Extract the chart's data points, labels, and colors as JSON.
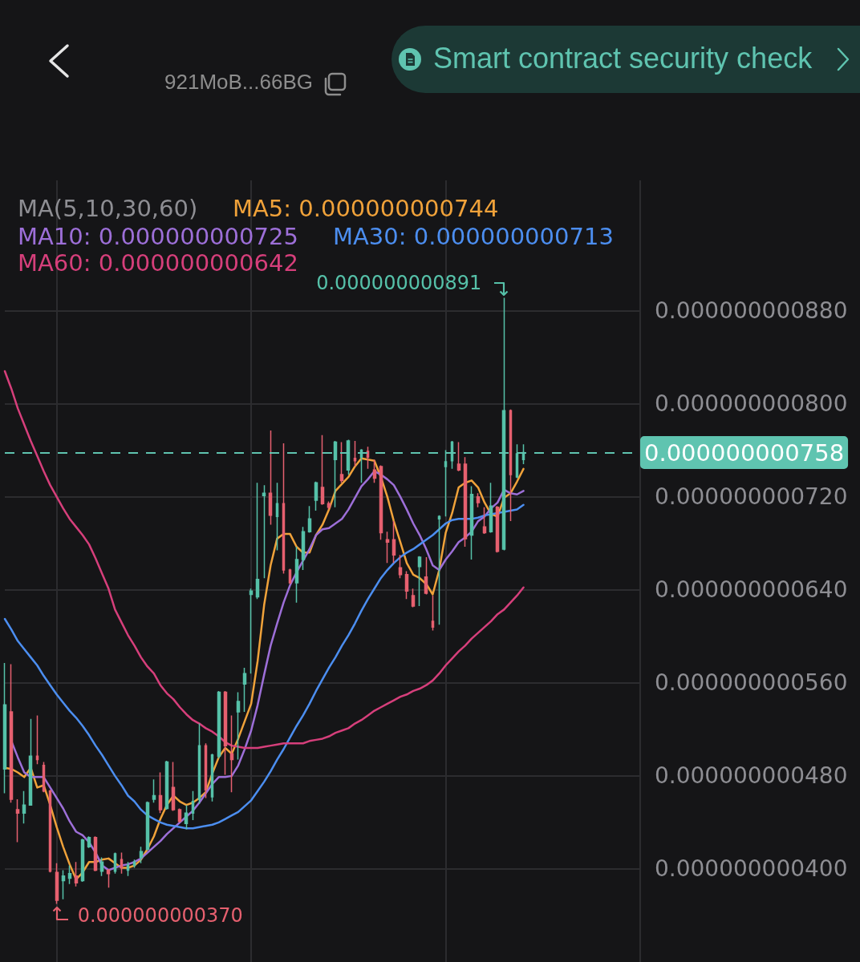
{
  "chart_data": {
    "type": "candlestick",
    "subtitle": "921MoB...66BG",
    "legend_title": "MA(5,10,30,60)",
    "annotations": [
      "Smart contract security check",
      "0.000000000891",
      "0.000000000370"
    ],
    "categories": [
      null,
      null,
      null,
      null,
      null,
      null,
      null,
      null,
      null,
      null,
      null,
      null,
      null,
      null,
      null,
      null,
      null,
      null,
      null,
      null,
      null,
      null,
      null,
      null,
      null,
      null,
      null,
      null,
      null,
      null,
      null,
      null,
      null,
      null,
      null,
      null,
      null,
      null,
      null,
      null,
      null,
      null,
      null,
      null,
      null,
      null,
      null,
      null,
      null,
      null,
      null,
      null,
      null,
      null,
      null,
      null,
      null,
      null,
      null,
      null,
      null,
      null,
      null,
      null,
      null,
      null,
      null,
      null,
      null,
      null,
      null,
      null,
      null,
      null,
      null,
      null,
      null,
      null,
      null,
      null,
      null
    ],
    "ohlc": [
      [
        4.86e-10,
        5.77e-10,
        4.65e-10,
        5.41e-10
      ],
      [
        5.35e-10,
        5.76e-10,
        4.57e-10,
        4.6e-10
      ],
      [
        4.51e-10,
        4.6e-10,
        4.23e-10,
        4.48e-10
      ],
      [
        4.48e-10,
        4.67e-10,
        4.39e-10,
        4.55e-10
      ],
      [
        4.55e-10,
        5.29e-10,
        4.55e-10,
        4.97e-10
      ],
      [
        4.97e-10,
        5.32e-10,
        4.9e-10,
        4.94e-10
      ],
      [
        4.89e-10,
        4.92e-10,
        4.66e-10,
        4.67e-10
      ],
      [
        4.67e-10,
        4.68e-10,
        3.97e-10,
        3.98e-10
      ],
      [
        3.97e-10,
        4.05e-10,
        3.7e-10,
        3.73e-10
      ],
      [
        3.9e-10,
        3.99e-10,
        3.74e-10,
        3.94e-10
      ],
      [
        3.92e-10,
        4.03e-10,
        3.87e-10,
        3.96e-10
      ],
      [
        3.94e-10,
        4.06e-10,
        3.85e-10,
        3.88e-10
      ],
      [
        3.9e-10,
        4.26e-10,
        3.89e-10,
        4.25e-10
      ],
      [
        4.19e-10,
        4.28e-10,
        4.18e-10,
        4.27e-10
      ],
      [
        4.27e-10,
        4.28e-10,
        3.98e-10,
        3.99e-10
      ],
      [
        3.98e-10,
        4.1e-10,
        3.94e-10,
        4.06e-10
      ],
      [
        3.99e-10,
        4e-10,
        3.84e-10,
        3.96e-10
      ],
      [
        3.98e-10,
        4.14e-10,
        3.96e-10,
        4.13e-10
      ],
      [
        4.08e-10,
        4.14e-10,
        3.96e-10,
        4.01e-10
      ],
      [
        3.99e-10,
        4.06e-10,
        3.94e-10,
        4.03e-10
      ],
      [
        4.03e-10,
        4.08e-10,
        4.01e-10,
        4.06e-10
      ],
      [
        4.1e-10,
        4.19e-10,
        4.05e-10,
        4.15e-10
      ],
      [
        4.17e-10,
        4.58e-10,
        4.16e-10,
        4.57e-10
      ],
      [
        4.6e-10,
        4.77e-10,
        4.57e-10,
        4.63e-10
      ],
      [
        4.63e-10,
        4.83e-10,
        4.48e-10,
        4.51e-10
      ],
      [
        4.52e-10,
        4.93e-10,
        4.51e-10,
        4.92e-10
      ],
      [
        4.7e-10,
        4.92e-10,
        4.5e-10,
        4.51e-10
      ],
      [
        4.51e-10,
        4.52e-10,
        4.4e-10,
        4.41e-10
      ],
      [
        4.39e-10,
        4.55e-10,
        4.34e-10,
        4.48e-10
      ],
      [
        4.48e-10,
        4.67e-10,
        4.42e-10,
        4.58e-10
      ],
      [
        4.6e-10,
        5.25e-10,
        4.56e-10,
        5.06e-10
      ],
      [
        5.06e-10,
        5.08e-10,
        4.61e-10,
        4.68e-10
      ],
      [
        4.62e-10,
        4.99e-10,
        4.58e-10,
        4.98e-10
      ],
      [
        4.97e-10,
        5.53e-10,
        4.95e-10,
        5.52e-10
      ],
      [
        5.52e-10,
        5.53e-10,
        4.81e-10,
        5.06e-10
      ],
      [
        4.99e-10,
        5.32e-10,
        4.66e-10,
        4.94e-10
      ],
      [
        5.35e-10,
        5.52e-10,
        4.94e-10,
        5.44e-10
      ],
      [
        5.59e-10,
        5.73e-10,
        5.35e-10,
        5.68e-10
      ],
      [
        6.36e-10,
        6.41e-10,
        5.68e-10,
        6.39e-10
      ],
      [
        6.34e-10,
        7.32e-10,
        6.32e-10,
        6.49e-10
      ],
      [
        7.21e-10,
        7.3e-10,
        6.5e-10,
        7.23e-10
      ],
      [
        7.23e-10,
        7.77e-10,
        6.96e-10,
        7.04e-10
      ],
      [
        7.03e-10,
        7.32e-10,
        6.74e-10,
        7.14e-10
      ],
      [
        7.14e-10,
        7.66e-10,
        6.54e-10,
        6.57e-10
      ],
      [
        6.57e-10,
        6.58e-10,
        6.45e-10,
        6.46e-10
      ],
      [
        6.46e-10,
        6.77e-10,
        6.29e-10,
        6.66e-10
      ],
      [
        6.66e-10,
        6.94e-10,
        6.57e-10,
        6.9e-10
      ],
      [
        6.9e-10,
        7.12e-10,
        6.89e-10,
        7.01e-10
      ],
      [
        7.17e-10,
        7.33e-10,
        7.08e-10,
        7.32e-10
      ],
      [
        7.28e-10,
        7.73e-10,
        7.13e-10,
        7.14e-10
      ],
      [
        7.14e-10,
        7.16e-10,
        7.09e-10,
        7.11e-10
      ],
      [
        7.52e-10,
        7.68e-10,
        7.11e-10,
        7.67e-10
      ],
      [
        7.39e-10,
        7.67e-10,
        7.32e-10,
        7.34e-10
      ],
      [
        7.43e-10,
        7.69e-10,
        7.39e-10,
        7.68e-10
      ],
      [
        7.53e-10,
        7.68e-10,
        7.46e-10,
        7.51e-10
      ],
      [
        7.54e-10,
        7.61e-10,
        7.32e-10,
        7.6e-10
      ],
      [
        7.59e-10,
        7.63e-10,
        7.44e-10,
        7.54e-10
      ],
      [
        7.43e-10,
        7.52e-10,
        7.32e-10,
        7.36e-10
      ],
      [
        7.46e-10,
        7.47e-10,
        6.83e-10,
        6.89e-10
      ],
      [
        6.83e-10,
        6.9e-10,
        6.63e-10,
        6.81e-10
      ],
      [
        6.83e-10,
        6.99e-10,
        6.63e-10,
        6.7e-10
      ],
      [
        6.59e-10,
        6.7e-10,
        6.5e-10,
        6.53e-10
      ],
      [
        6.53e-10,
        6.56e-10,
        6.32e-10,
        6.39e-10
      ],
      [
        6.35e-10,
        6.41e-10,
        6.25e-10,
        6.26e-10
      ],
      [
        6.6e-10,
        6.69e-10,
        6.26e-10,
        6.68e-10
      ],
      [
        6.51e-10,
        6.68e-10,
        6.36e-10,
        6.37e-10
      ],
      [
        6.13e-10,
        6.35e-10,
        6.05e-10,
        6.08e-10
      ],
      [
        7.01e-10,
        7.04e-10,
        6.1e-10,
        7.03e-10
      ],
      [
        7.46e-10,
        7.6e-10,
        7.03e-10,
        7.5e-10
      ],
      [
        7.51e-10,
        7.68e-10,
        7.44e-10,
        7.67e-10
      ],
      [
        7.48e-10,
        7.67e-10,
        7.42e-10,
        7.43e-10
      ],
      [
        7.48e-10,
        7.54e-10,
        6.77e-10,
        6.84e-10
      ],
      [
        6.87e-10,
        7.29e-10,
        6.66e-10,
        7.22e-10
      ],
      [
        7.2e-10,
        7.23e-10,
        7.11e-10,
        7.15e-10
      ],
      [
        6.94e-10,
        7.11e-10,
        6.88e-10,
        6.89e-10
      ],
      [
        6.9e-10,
        7.32e-10,
        6.89e-10,
        7.12e-10
      ],
      [
        7.11e-10,
        7.12e-10,
        6.72e-10,
        6.73e-10
      ],
      [
        6.75e-10,
        8.91e-10,
        6.74e-10,
        7.94e-10
      ],
      [
        7.94e-10,
        7.95e-10,
        6.99e-10,
        7.39e-10
      ],
      [
        7.37e-10,
        7.65e-10,
        7.36e-10,
        7.57e-10
      ],
      [
        7.52e-10,
        7.65e-10,
        7.48e-10,
        7.58e-10
      ]
    ],
    "colors": [
      "#56c1a9",
      "#e6606f",
      "#e6606f",
      "#56c1a9",
      "#56c1a9",
      "#e6606f",
      "#e6606f",
      "#e6606f",
      "#e6606f",
      "#56c1a9",
      "#56c1a9",
      "#e6606f",
      "#56c1a9",
      "#56c1a9",
      "#e6606f",
      "#56c1a9",
      "#e6606f",
      "#56c1a9",
      "#e6606f",
      "#56c1a9",
      "#56c1a9",
      "#56c1a9",
      "#56c1a9",
      "#56c1a9",
      "#e6606f",
      "#56c1a9",
      "#e6606f",
      "#e6606f",
      "#56c1a9",
      "#56c1a9",
      "#56c1a9",
      "#e6606f",
      "#56c1a9",
      "#56c1a9",
      "#e6606f",
      "#e6606f",
      "#56c1a9",
      "#56c1a9",
      "#56c1a9",
      "#56c1a9",
      "#56c1a9",
      "#e6606f",
      "#56c1a9",
      "#e6606f",
      "#e6606f",
      "#56c1a9",
      "#56c1a9",
      "#56c1a9",
      "#56c1a9",
      "#e6606f",
      "#e6606f",
      "#56c1a9",
      "#e6606f",
      "#56c1a9",
      "#e6606f",
      "#56c1a9",
      "#e6606f",
      "#e6606f",
      "#e6606f",
      "#e6606f",
      "#e6606f",
      "#e6606f",
      "#e6606f",
      "#e6606f",
      "#56c1a9",
      "#e6606f",
      "#e6606f",
      "#56c1a9",
      "#56c1a9",
      "#56c1a9",
      "#e6606f",
      "#e6606f",
      "#56c1a9",
      "#e6606f",
      "#e6606f",
      "#56c1a9",
      "#e6606f",
      "#56c1a9",
      "#e6606f",
      "#56c1a9",
      "#56c1a9"
    ],
    "series": [
      {
        "type": "line",
        "name": "MA5: 0.000000000744",
        "color": "#f0a23a",
        "values": [
          4.87e-10,
          4.86e-10,
          4.83e-10,
          4.79e-10,
          4.87e-10,
          4.7e-10,
          4.72e-10,
          4.55e-10,
          4.36e-10,
          4.19e-10,
          4.04e-10,
          3.91e-10,
          3.97e-10,
          4.06e-10,
          4.06e-10,
          4.08e-10,
          4.09e-10,
          4.05e-10,
          4.01e-10,
          4.01e-10,
          4.03e-10,
          4.08e-10,
          4.17e-10,
          4.28e-10,
          4.43e-10,
          4.55e-10,
          4.63e-10,
          4.58e-10,
          4.55e-10,
          4.57e-10,
          4.61e-10,
          4.66e-10,
          4.82e-10,
          4.96e-10,
          5.04e-10,
          4.99e-10,
          5.12e-10,
          5.27e-10,
          5.42e-10,
          5.79e-10,
          6.27e-10,
          6.61e-10,
          6.84e-10,
          6.88e-10,
          6.88e-10,
          6.77e-10,
          6.72e-10,
          6.72e-10,
          6.87e-10,
          6.96e-10,
          7.09e-10,
          7.25e-10,
          7.31e-10,
          7.37e-10,
          7.46e-10,
          7.53e-10,
          7.52e-10,
          7.51e-10,
          7.37e-10,
          7.2e-10,
          6.99e-10,
          6.81e-10,
          6.63e-10,
          6.53e-10,
          6.5e-10,
          6.45e-10,
          6.36e-10,
          6.57e-10,
          6.89e-10,
          7.06e-10,
          7.28e-10,
          7.32e-10,
          7.34e-10,
          7.28e-10,
          7.15e-10,
          7.05e-10,
          7.03e-10,
          7.19e-10,
          7.23e-10,
          7.33e-10,
          7.44e-10
        ]
      },
      {
        "type": "line",
        "name": "MA10: 0.000000000725",
        "color": "#9d6fd8",
        "values": [
          null,
          5.1e-10,
          4.96e-10,
          4.83e-10,
          4.79e-10,
          4.79e-10,
          4.79e-10,
          4.7e-10,
          4.61e-10,
          4.52e-10,
          4.41e-10,
          4.32e-10,
          4.29e-10,
          4.23e-10,
          4.14e-10,
          4.03e-10,
          3.99e-10,
          4.01e-10,
          4.03e-10,
          4.04e-10,
          4.06e-10,
          4.09e-10,
          4.14e-10,
          4.19e-10,
          4.24e-10,
          4.3e-10,
          4.35e-10,
          4.4e-10,
          4.45e-10,
          4.5e-10,
          4.57e-10,
          4.65e-10,
          4.73e-10,
          4.79e-10,
          4.79e-10,
          4.8e-10,
          4.89e-10,
          5.03e-10,
          5.19e-10,
          5.41e-10,
          5.67e-10,
          5.92e-10,
          6.11e-10,
          6.29e-10,
          6.44e-10,
          6.55e-10,
          6.65e-10,
          6.75e-10,
          6.87e-10,
          6.92e-10,
          6.93e-10,
          6.97e-10,
          7.01e-10,
          7.09e-10,
          7.19e-10,
          7.29e-10,
          7.35e-10,
          7.42e-10,
          7.39e-10,
          7.35e-10,
          7.3e-10,
          7.2e-10,
          7.09e-10,
          6.97e-10,
          6.87e-10,
          6.75e-10,
          6.61e-10,
          6.57e-10,
          6.66e-10,
          6.73e-10,
          6.81e-10,
          6.85e-10,
          6.9e-10,
          6.99e-10,
          7.03e-10,
          7.1e-10,
          7.15e-10,
          7.26e-10,
          7.23e-10,
          7.22e-10,
          7.25e-10
        ]
      },
      {
        "type": "line",
        "name": "MA30: 0.000000000713",
        "color": "#4c8ef0",
        "values": [
          6.15e-10,
          6.06e-10,
          5.96e-10,
          5.89e-10,
          5.82e-10,
          5.75e-10,
          5.66e-10,
          5.58e-10,
          5.5e-10,
          5.43e-10,
          5.36e-10,
          5.3e-10,
          5.23e-10,
          5.15e-10,
          5.06e-10,
          4.98e-10,
          4.89e-10,
          4.8e-10,
          4.72e-10,
          4.63e-10,
          4.58e-10,
          4.51e-10,
          4.46e-10,
          4.43e-10,
          4.4e-10,
          4.38e-10,
          4.37e-10,
          4.36e-10,
          4.35e-10,
          4.35e-10,
          4.36e-10,
          4.37e-10,
          4.38e-10,
          4.4e-10,
          4.43e-10,
          4.46e-10,
          4.49e-10,
          4.54e-10,
          4.59e-10,
          4.67e-10,
          4.75e-10,
          4.84e-10,
          4.94e-10,
          5.03e-10,
          5.13e-10,
          5.23e-10,
          5.32e-10,
          5.42e-10,
          5.53e-10,
          5.63e-10,
          5.73e-10,
          5.82e-10,
          5.92e-10,
          6.01e-10,
          6.11e-10,
          6.22e-10,
          6.32e-10,
          6.41e-10,
          6.5e-10,
          6.57e-10,
          6.63e-10,
          6.68e-10,
          6.72e-10,
          6.75e-10,
          6.79e-10,
          6.83e-10,
          6.87e-10,
          6.92e-10,
          6.97e-10,
          7e-10,
          7.01e-10,
          7.01e-10,
          7.01e-10,
          7.02e-10,
          7.04e-10,
          7.05e-10,
          7.06e-10,
          7.07e-10,
          7.08e-10,
          7.09e-10,
          7.13e-10
        ]
      },
      {
        "type": "line",
        "name": "MA60: 0.000000000642",
        "color": "#d63f7b",
        "values": [
          8.28e-10,
          8.13e-10,
          7.96e-10,
          7.82e-10,
          7.68e-10,
          7.55e-10,
          7.42e-10,
          7.3e-10,
          7.2e-10,
          7.1e-10,
          7.01e-10,
          6.94e-10,
          6.87e-10,
          6.79e-10,
          6.67e-10,
          6.54e-10,
          6.41e-10,
          6.23e-10,
          6.12e-10,
          6.01e-10,
          5.92e-10,
          5.82e-10,
          5.74e-10,
          5.68e-10,
          5.58e-10,
          5.51e-10,
          5.46e-10,
          5.39e-10,
          5.33e-10,
          5.28e-10,
          5.25e-10,
          5.21e-10,
          5.18e-10,
          5.14e-10,
          5.09e-10,
          5.06e-10,
          5.05e-10,
          5.04e-10,
          5.04e-10,
          5.04e-10,
          5.05e-10,
          5.06e-10,
          5.07e-10,
          5.08e-10,
          5.08e-10,
          5.08e-10,
          5.08e-10,
          5.1e-10,
          5.11e-10,
          5.12e-10,
          5.14e-10,
          5.17e-10,
          5.19e-10,
          5.21e-10,
          5.25e-10,
          5.28e-10,
          5.32e-10,
          5.36e-10,
          5.39e-10,
          5.42e-10,
          5.45e-10,
          5.48e-10,
          5.5e-10,
          5.53e-10,
          5.55e-10,
          5.58e-10,
          5.62e-10,
          5.68e-10,
          5.75e-10,
          5.81e-10,
          5.87e-10,
          5.92e-10,
          5.98e-10,
          6.03e-10,
          6.08e-10,
          6.13e-10,
          6.19e-10,
          6.23e-10,
          6.29e-10,
          6.35e-10,
          6.42e-10
        ]
      }
    ],
    "ylim": [
      3.2e-10,
      9.92e-10
    ],
    "yticks": [
      {
        "value": 4e-10,
        "label": "0.000000000400"
      },
      {
        "value": 4.8e-10,
        "label": "0.000000000480"
      },
      {
        "value": 5.6e-10,
        "label": "0.000000000560"
      },
      {
        "value": 6.4e-10,
        "label": "0.000000000640"
      },
      {
        "value": 7.2e-10,
        "label": "0.000000000720"
      },
      {
        "value": 8e-10,
        "label": "0.000000000800"
      },
      {
        "value": 8.8e-10,
        "label": "0.000000000880"
      }
    ],
    "ref_lines": [
      {
        "axis": "y",
        "value": 7.58e-10,
        "label": "0.000000000758",
        "color": "#5fc4b0",
        "line_style": "dashed"
      }
    ],
    "grid": true,
    "legend": "top",
    "marker": "none",
    "tick_labels": "y"
  }
}
